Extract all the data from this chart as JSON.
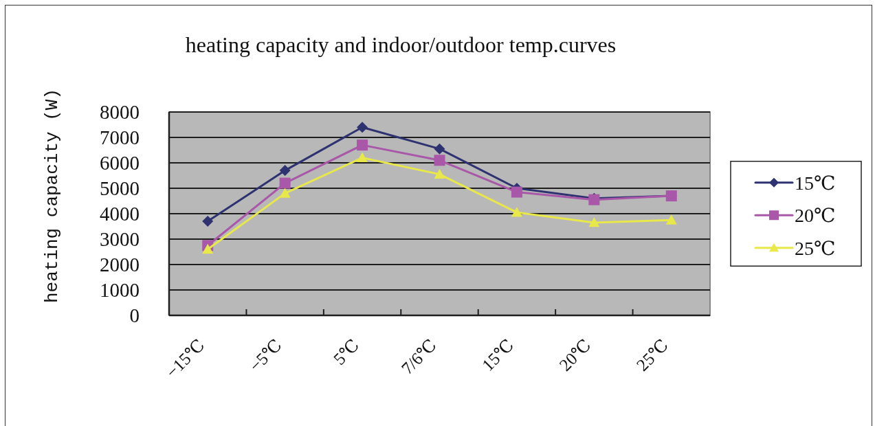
{
  "chart_data": {
    "type": "line",
    "title": "heating capacity and indoor/outdoor temp.curves",
    "ylabel": "heating capacity (W)",
    "categories": [
      "−15℃",
      "−5℃",
      "5℃",
      "7/6℃",
      "15℃",
      "20℃",
      "25℃"
    ],
    "series": [
      {
        "name": "15℃",
        "color": "#2e3270",
        "marker": "diamond",
        "values": [
          3700,
          5700,
          7400,
          6550,
          5000,
          4600,
          4700
        ]
      },
      {
        "name": "20℃",
        "color": "#a957a9",
        "marker": "square",
        "values": [
          2750,
          5200,
          6700,
          6100,
          4850,
          4550,
          4700
        ]
      },
      {
        "name": "25℃",
        "color": "#e8e84a",
        "marker": "triangle",
        "values": [
          2600,
          4800,
          6200,
          5550,
          4050,
          3650,
          3750
        ]
      }
    ],
    "ylim": [
      0,
      8000
    ],
    "yticks": [
      0,
      1000,
      2000,
      3000,
      4000,
      5000,
      6000,
      7000,
      8000
    ],
    "grid": "y",
    "legend": "right"
  }
}
